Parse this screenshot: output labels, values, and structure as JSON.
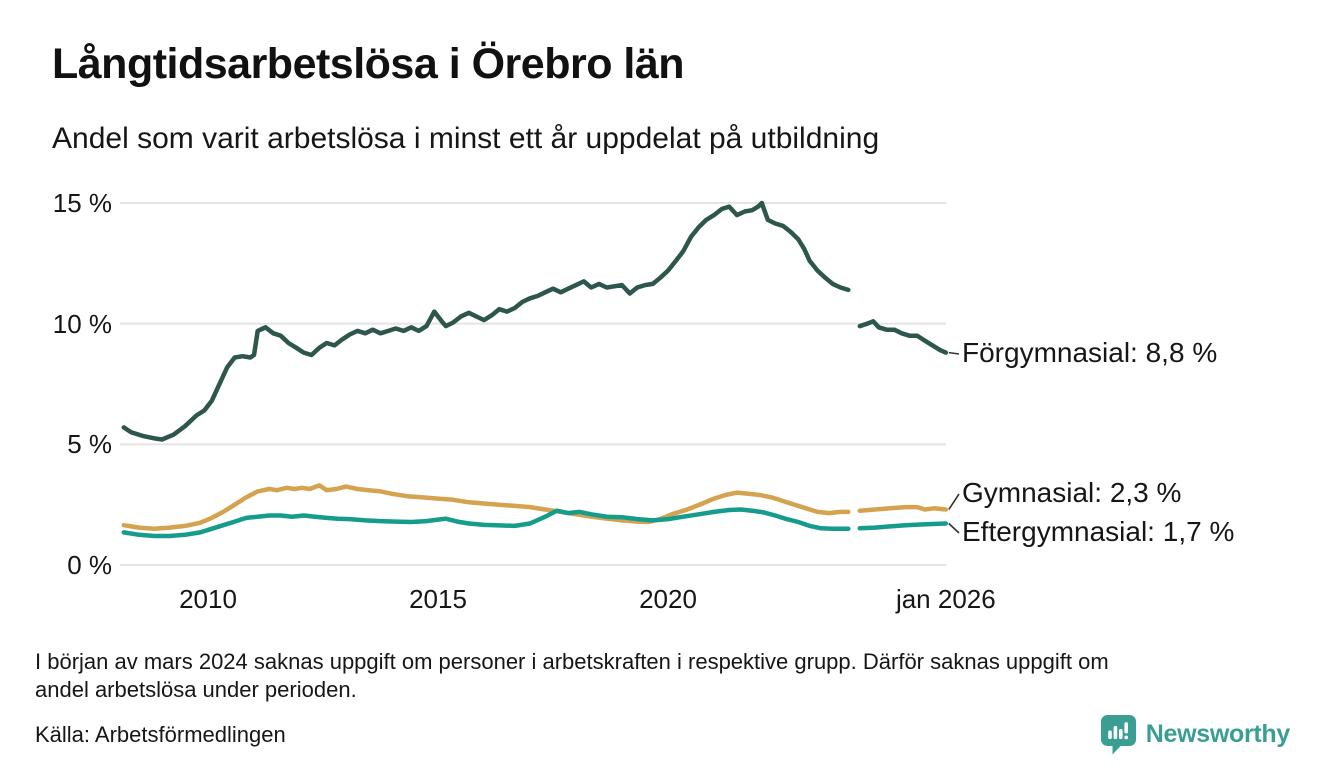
{
  "header": {
    "title": "Långtidsarbetslösa i Örebro län",
    "subtitle": "Andel som varit arbetslösa i minst ett år uppdelat på utbildning"
  },
  "chart_data": {
    "type": "line",
    "title": "Långtidsarbetslösa i Örebro län",
    "subtitle": "Andel som varit arbetslösa i minst ett år uppdelat på utbildning",
    "unit": "%",
    "grid": true,
    "legend_position": "end-of-line-labels-right",
    "x_axis": {
      "range_years": [
        2008.1,
        2026.3
      ],
      "ticks": [
        {
          "label": "2010",
          "value": 2010
        },
        {
          "label": "2015",
          "value": 2015
        },
        {
          "label": "2020",
          "value": 2020
        },
        {
          "label": "jan 2026",
          "value": 2026.04
        }
      ]
    },
    "y_axis": {
      "range": [
        0,
        15.2
      ],
      "ticks": [
        {
          "label": "15 %",
          "value": 15
        },
        {
          "label": "10 %",
          "value": 10
        },
        {
          "label": "5 %",
          "value": 5
        },
        {
          "label": "0 %",
          "value": 0
        }
      ]
    },
    "data_gap": {
      "from_year": 2023.92,
      "to_year": 2024.17
    },
    "series": [
      {
        "id": "forgymnasial",
        "name": "Förgymnasial",
        "end_label": "Förgymnasial: 8,8 %",
        "end_value": 8.8,
        "color": "#2d564c",
        "segments": [
          [
            [
              2008.17,
              5.7
            ],
            [
              2008.33,
              5.5
            ],
            [
              2008.58,
              5.35
            ],
            [
              2008.83,
              5.25
            ],
            [
              2009.0,
              5.2
            ],
            [
              2009.25,
              5.4
            ],
            [
              2009.5,
              5.75
            ],
            [
              2009.75,
              6.2
            ],
            [
              2009.92,
              6.4
            ],
            [
              2010.08,
              6.8
            ],
            [
              2010.25,
              7.5
            ],
            [
              2010.42,
              8.2
            ],
            [
              2010.58,
              8.6
            ],
            [
              2010.75,
              8.65
            ],
            [
              2010.92,
              8.6
            ],
            [
              2011.0,
              8.7
            ],
            [
              2011.08,
              9.7
            ],
            [
              2011.25,
              9.85
            ],
            [
              2011.42,
              9.6
            ],
            [
              2011.58,
              9.5
            ],
            [
              2011.75,
              9.2
            ],
            [
              2011.92,
              9.0
            ],
            [
              2012.08,
              8.8
            ],
            [
              2012.25,
              8.7
            ],
            [
              2012.42,
              9.0
            ],
            [
              2012.58,
              9.2
            ],
            [
              2012.75,
              9.1
            ],
            [
              2012.92,
              9.35
            ],
            [
              2013.08,
              9.55
            ],
            [
              2013.25,
              9.7
            ],
            [
              2013.42,
              9.6
            ],
            [
              2013.58,
              9.75
            ],
            [
              2013.75,
              9.6
            ],
            [
              2013.92,
              9.7
            ],
            [
              2014.08,
              9.8
            ],
            [
              2014.25,
              9.7
            ],
            [
              2014.42,
              9.85
            ],
            [
              2014.58,
              9.7
            ],
            [
              2014.75,
              9.9
            ],
            [
              2014.92,
              10.5
            ],
            [
              2015.08,
              10.1
            ],
            [
              2015.17,
              9.9
            ],
            [
              2015.33,
              10.05
            ],
            [
              2015.5,
              10.3
            ],
            [
              2015.67,
              10.45
            ],
            [
              2015.83,
              10.3
            ],
            [
              2016.0,
              10.15
            ],
            [
              2016.17,
              10.35
            ],
            [
              2016.33,
              10.6
            ],
            [
              2016.5,
              10.5
            ],
            [
              2016.67,
              10.65
            ],
            [
              2016.83,
              10.9
            ],
            [
              2017.0,
              11.05
            ],
            [
              2017.17,
              11.15
            ],
            [
              2017.33,
              11.3
            ],
            [
              2017.5,
              11.45
            ],
            [
              2017.67,
              11.3
            ],
            [
              2017.83,
              11.45
            ],
            [
              2018.0,
              11.6
            ],
            [
              2018.17,
              11.75
            ],
            [
              2018.33,
              11.5
            ],
            [
              2018.5,
              11.65
            ],
            [
              2018.67,
              11.5
            ],
            [
              2018.83,
              11.55
            ],
            [
              2019.0,
              11.6
            ],
            [
              2019.17,
              11.25
            ],
            [
              2019.33,
              11.5
            ],
            [
              2019.5,
              11.6
            ],
            [
              2019.67,
              11.65
            ],
            [
              2019.83,
              11.9
            ],
            [
              2020.0,
              12.2
            ],
            [
              2020.17,
              12.6
            ],
            [
              2020.33,
              13.0
            ],
            [
              2020.5,
              13.6
            ],
            [
              2020.67,
              14.0
            ],
            [
              2020.83,
              14.3
            ],
            [
              2021.0,
              14.5
            ],
            [
              2021.17,
              14.75
            ],
            [
              2021.33,
              14.85
            ],
            [
              2021.5,
              14.5
            ],
            [
              2021.67,
              14.65
            ],
            [
              2021.83,
              14.7
            ],
            [
              2021.96,
              14.85
            ],
            [
              2022.04,
              15.0
            ],
            [
              2022.17,
              14.3
            ],
            [
              2022.33,
              14.15
            ],
            [
              2022.5,
              14.05
            ],
            [
              2022.67,
              13.8
            ],
            [
              2022.83,
              13.5
            ],
            [
              2022.96,
              13.1
            ],
            [
              2023.08,
              12.6
            ],
            [
              2023.25,
              12.2
            ],
            [
              2023.42,
              11.9
            ],
            [
              2023.58,
              11.65
            ],
            [
              2023.75,
              11.5
            ],
            [
              2023.92,
              11.4
            ]
          ],
          [
            [
              2024.17,
              9.9
            ],
            [
              2024.33,
              10.0
            ],
            [
              2024.46,
              10.1
            ],
            [
              2024.58,
              9.85
            ],
            [
              2024.75,
              9.75
            ],
            [
              2024.92,
              9.75
            ],
            [
              2025.08,
              9.6
            ],
            [
              2025.25,
              9.5
            ],
            [
              2025.42,
              9.5
            ],
            [
              2025.58,
              9.3
            ],
            [
              2025.75,
              9.1
            ],
            [
              2025.92,
              8.9
            ],
            [
              2026.04,
              8.8
            ]
          ]
        ]
      },
      {
        "id": "gymnasial",
        "name": "Gymnasial",
        "end_label": "Gymnasial: 2,3 %",
        "end_value": 2.3,
        "color": "#d5a34f",
        "segments": [
          [
            [
              2008.17,
              1.65
            ],
            [
              2008.5,
              1.55
            ],
            [
              2008.83,
              1.5
            ],
            [
              2009.17,
              1.55
            ],
            [
              2009.5,
              1.62
            ],
            [
              2009.83,
              1.75
            ],
            [
              2010.08,
              1.95
            ],
            [
              2010.33,
              2.2
            ],
            [
              2010.58,
              2.5
            ],
            [
              2010.83,
              2.8
            ],
            [
              2011.08,
              3.05
            ],
            [
              2011.33,
              3.15
            ],
            [
              2011.5,
              3.1
            ],
            [
              2011.71,
              3.2
            ],
            [
              2011.88,
              3.15
            ],
            [
              2012.04,
              3.2
            ],
            [
              2012.21,
              3.15
            ],
            [
              2012.42,
              3.3
            ],
            [
              2012.58,
              3.1
            ],
            [
              2012.79,
              3.15
            ],
            [
              2013.0,
              3.25
            ],
            [
              2013.25,
              3.15
            ],
            [
              2013.5,
              3.1
            ],
            [
              2013.75,
              3.05
            ],
            [
              2014.0,
              2.95
            ],
            [
              2014.33,
              2.85
            ],
            [
              2014.67,
              2.8
            ],
            [
              2015.0,
              2.75
            ],
            [
              2015.33,
              2.7
            ],
            [
              2015.67,
              2.6
            ],
            [
              2016.0,
              2.55
            ],
            [
              2016.33,
              2.5
            ],
            [
              2016.67,
              2.45
            ],
            [
              2017.0,
              2.4
            ],
            [
              2017.33,
              2.3
            ],
            [
              2017.67,
              2.2
            ],
            [
              2018.0,
              2.1
            ],
            [
              2018.33,
              2.0
            ],
            [
              2018.67,
              1.92
            ],
            [
              2019.0,
              1.85
            ],
            [
              2019.33,
              1.8
            ],
            [
              2019.58,
              1.78
            ],
            [
              2019.83,
              1.9
            ],
            [
              2020.08,
              2.1
            ],
            [
              2020.42,
              2.3
            ],
            [
              2020.75,
              2.55
            ],
            [
              2021.0,
              2.75
            ],
            [
              2021.25,
              2.9
            ],
            [
              2021.5,
              3.0
            ],
            [
              2021.75,
              2.95
            ],
            [
              2022.0,
              2.9
            ],
            [
              2022.25,
              2.8
            ],
            [
              2022.5,
              2.65
            ],
            [
              2022.75,
              2.5
            ],
            [
              2023.0,
              2.35
            ],
            [
              2023.25,
              2.2
            ],
            [
              2023.5,
              2.15
            ],
            [
              2023.75,
              2.2
            ],
            [
              2023.92,
              2.2
            ]
          ],
          [
            [
              2024.17,
              2.25
            ],
            [
              2024.5,
              2.3
            ],
            [
              2024.83,
              2.35
            ],
            [
              2025.17,
              2.4
            ],
            [
              2025.42,
              2.4
            ],
            [
              2025.58,
              2.3
            ],
            [
              2025.79,
              2.35
            ],
            [
              2026.04,
              2.3
            ]
          ]
        ]
      },
      {
        "id": "eftergymnasial",
        "name": "Eftergymnasial",
        "end_label": "Eftergymnasial: 1,7 %",
        "end_value": 1.7,
        "color": "#169c8c",
        "segments": [
          [
            [
              2008.17,
              1.35
            ],
            [
              2008.5,
              1.25
            ],
            [
              2008.83,
              1.2
            ],
            [
              2009.17,
              1.2
            ],
            [
              2009.5,
              1.25
            ],
            [
              2009.83,
              1.35
            ],
            [
              2010.08,
              1.5
            ],
            [
              2010.33,
              1.65
            ],
            [
              2010.58,
              1.8
            ],
            [
              2010.83,
              1.95
            ],
            [
              2011.08,
              2.0
            ],
            [
              2011.33,
              2.05
            ],
            [
              2011.58,
              2.05
            ],
            [
              2011.83,
              2.0
            ],
            [
              2012.08,
              2.05
            ],
            [
              2012.33,
              2.0
            ],
            [
              2012.58,
              1.95
            ],
            [
              2012.83,
              1.92
            ],
            [
              2013.08,
              1.9
            ],
            [
              2013.42,
              1.85
            ],
            [
              2013.75,
              1.82
            ],
            [
              2014.08,
              1.8
            ],
            [
              2014.42,
              1.78
            ],
            [
              2014.75,
              1.82
            ],
            [
              2015.0,
              1.88
            ],
            [
              2015.17,
              1.92
            ],
            [
              2015.42,
              1.8
            ],
            [
              2015.67,
              1.72
            ],
            [
              2016.0,
              1.66
            ],
            [
              2016.33,
              1.64
            ],
            [
              2016.67,
              1.62
            ],
            [
              2017.0,
              1.72
            ],
            [
              2017.33,
              2.0
            ],
            [
              2017.58,
              2.25
            ],
            [
              2017.83,
              2.15
            ],
            [
              2018.08,
              2.2
            ],
            [
              2018.33,
              2.1
            ],
            [
              2018.67,
              2.0
            ],
            [
              2019.0,
              1.98
            ],
            [
              2019.33,
              1.9
            ],
            [
              2019.67,
              1.85
            ],
            [
              2020.0,
              1.9
            ],
            [
              2020.33,
              2.0
            ],
            [
              2020.67,
              2.1
            ],
            [
              2021.0,
              2.2
            ],
            [
              2021.33,
              2.28
            ],
            [
              2021.58,
              2.3
            ],
            [
              2021.83,
              2.25
            ],
            [
              2022.08,
              2.18
            ],
            [
              2022.33,
              2.05
            ],
            [
              2022.58,
              1.9
            ],
            [
              2022.83,
              1.78
            ],
            [
              2023.08,
              1.62
            ],
            [
              2023.33,
              1.52
            ],
            [
              2023.58,
              1.5
            ],
            [
              2023.83,
              1.5
            ],
            [
              2023.92,
              1.5
            ]
          ],
          [
            [
              2024.17,
              1.52
            ],
            [
              2024.5,
              1.55
            ],
            [
              2024.83,
              1.6
            ],
            [
              2025.17,
              1.65
            ],
            [
              2025.5,
              1.68
            ],
            [
              2025.75,
              1.7
            ],
            [
              2026.04,
              1.72
            ]
          ]
        ]
      }
    ]
  },
  "footnote": {
    "lines": [
      "I början av mars 2024 saknas uppgift om personer i arbetskraften i respektive grupp. Därför saknas uppgift om",
      "andel arbetslösa under perioden."
    ]
  },
  "footer": {
    "source": "Källa: Arbetsförmedlingen",
    "brand": "Newsworthy"
  },
  "icons": {
    "brand_icon": "newsworthy-speech-bubble-bar-chart-icon"
  },
  "colors": {
    "forgymnasial": "#2d564c",
    "gymnasial": "#d5a34f",
    "eftergymnasial": "#169c8c",
    "grid": "#e4e4e4",
    "text": "#161616",
    "brand": "#3a9e92",
    "background": "#ffffff"
  }
}
